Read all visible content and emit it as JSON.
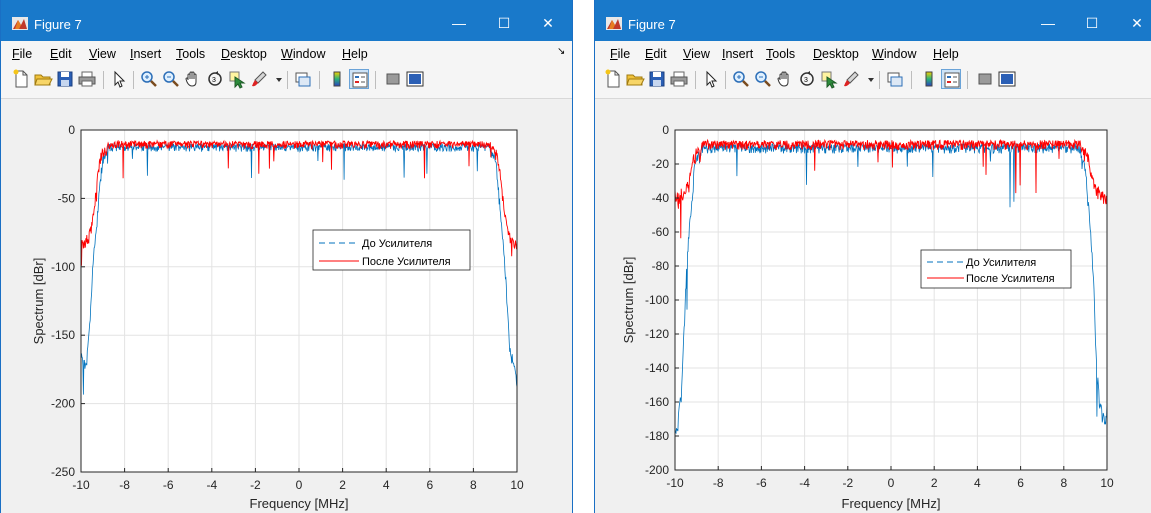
{
  "windows": [
    {
      "id": "win1",
      "title": "Figure 7",
      "menu": [
        "File",
        "Edit",
        "View",
        "Insert",
        "Tools",
        "Desktop",
        "Window",
        "Help"
      ],
      "chart_data": {
        "type": "line",
        "xlabel": "Frequency [MHz]",
        "ylabel": "Spectrum [dBr]",
        "xlim": [
          -10,
          10
        ],
        "ylim": [
          -250,
          0
        ],
        "xticks": [
          -10,
          -8,
          -6,
          -4,
          -2,
          0,
          2,
          4,
          6,
          8,
          10
        ],
        "yticks": [
          0,
          -50,
          -100,
          -150,
          -200,
          -250
        ],
        "grid": true,
        "legend_position": "center-right",
        "series": [
          {
            "name": "До Усилителя",
            "color": "#0072bd",
            "style": "dashed",
            "x": [
              -10,
              -9.9,
              -9.8,
              -9.7,
              -9.6,
              -9.5,
              -9.45,
              -9.4,
              -9.3,
              -9.2,
              -9.1,
              -9,
              -8.8,
              -8.6,
              -8.4,
              -8,
              0,
              8,
              8.4,
              8.6,
              8.8,
              9,
              9.1,
              9.2,
              9.3,
              9.4,
              9.45,
              9.5,
              9.6,
              9.7,
              9.8,
              9.9,
              10
            ],
            "y": [
              -160,
              -165,
              -170,
              -160,
              -140,
              -110,
              -95,
              -85,
              -70,
              -50,
              -30,
              -18,
              -15,
              -14,
              -14,
              -14,
              -14,
              -14,
              -14,
              -14,
              -15,
              -18,
              -30,
              -50,
              -70,
              -85,
              -95,
              -110,
              -140,
              -160,
              -165,
              -170,
              -180
            ]
          },
          {
            "name": "После Усилителя",
            "color": "#ff0000",
            "style": "solid",
            "x": [
              -10,
              -9.9,
              -9.8,
              -9.7,
              -9.6,
              -9.5,
              -9.4,
              -9.3,
              -9.2,
              -9.1,
              -9,
              -8.8,
              -8.6,
              -8.4,
              -8,
              0,
              8,
              8.4,
              8.6,
              8.8,
              9,
              9.1,
              9.2,
              9.3,
              9.4,
              9.5,
              9.6,
              9.7,
              9.8,
              9.9,
              10
            ],
            "y": [
              -78,
              -80,
              -78,
              -76,
              -72,
              -65,
              -55,
              -40,
              -25,
              -15,
              -12,
              -12,
              -12,
              -12,
              -12,
              -12,
              -12,
              -12,
              -12,
              -12,
              -12,
              -15,
              -25,
              -40,
              -55,
              -65,
              -72,
              -76,
              -78,
              -80,
              -78
            ]
          }
        ]
      }
    },
    {
      "id": "win2",
      "title": "Figure 7",
      "menu": [
        "File",
        "Edit",
        "View",
        "Insert",
        "Tools",
        "Desktop",
        "Window",
        "Help"
      ],
      "chart_data": {
        "type": "line",
        "xlabel": "Frequency [MHz]",
        "ylabel": "Spectrum [dBr]",
        "xlim": [
          -10,
          10
        ],
        "ylim": [
          -200,
          0
        ],
        "xticks": [
          -10,
          -8,
          -6,
          -4,
          -2,
          0,
          2,
          4,
          6,
          8,
          10
        ],
        "yticks": [
          0,
          -20,
          -40,
          -60,
          -80,
          -100,
          -120,
          -140,
          -160,
          -180,
          -200
        ],
        "grid": true,
        "legend_position": "center-right",
        "series": [
          {
            "name": "До Усилителя",
            "color": "#0072bd",
            "style": "dashed",
            "x": [
              -10,
              -9.9,
              -9.8,
              -9.7,
              -9.6,
              -9.5,
              -9.45,
              -9.4,
              -9.3,
              -9.2,
              -9.1,
              -9,
              -8.8,
              -8.6,
              -8.4,
              -8,
              0,
              8,
              8.4,
              8.6,
              8.8,
              9,
              9.1,
              9.2,
              9.3,
              9.4,
              9.45,
              9.5,
              9.6,
              9.7,
              9.8,
              9.9,
              10
            ],
            "y": [
              -170,
              -175,
              -160,
              -150,
              -120,
              -90,
              -75,
              -65,
              -50,
              -35,
              -20,
              -13,
              -12,
              -12,
              -12,
              -12,
              -12,
              -12,
              -12,
              -12,
              -13,
              -20,
              -35,
              -50,
              -70,
              -90,
              -110,
              -130,
              -150,
              -160,
              -165,
              -170,
              -160
            ]
          },
          {
            "name": "После Усилителя",
            "color": "#ff0000",
            "style": "solid",
            "x": [
              -10,
              -9.9,
              -9.8,
              -9.7,
              -9.6,
              -9.5,
              -9.4,
              -9.3,
              -9.2,
              -9.1,
              -9,
              -8.8,
              -8.6,
              -8.4,
              -8,
              0,
              8,
              8.4,
              8.6,
              8.8,
              9,
              9.1,
              9.2,
              9.3,
              9.4,
              9.5,
              9.6,
              9.7,
              9.8,
              9.9,
              10
            ],
            "y": [
              -35,
              -36,
              -35,
              -34,
              -33,
              -32,
              -30,
              -25,
              -18,
              -12,
              -10,
              -10,
              -10,
              -10,
              -10,
              -10,
              -10,
              -10,
              -10,
              -10,
              -10,
              -12,
              -18,
              -25,
              -30,
              -32,
              -33,
              -34,
              -35,
              -36,
              -37
            ]
          }
        ]
      }
    }
  ]
}
